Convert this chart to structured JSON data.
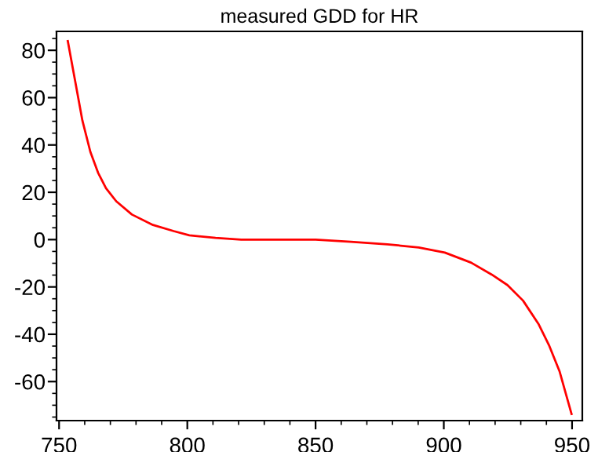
{
  "chart_data": {
    "type": "line",
    "title": "measured GDD for HR",
    "x": [
      753.4,
      756.1,
      759.1,
      762.2,
      765.2,
      768.3,
      772.3,
      778.4,
      786.6,
      794.7,
      800.8,
      811,
      821,
      850,
      863.8,
      878,
      890.2,
      900.4,
      910.6,
      918.7,
      924.8,
      930.9,
      937,
      941,
      945.1,
      949.8
    ],
    "series": [
      {
        "color": "#ff0000",
        "values": [
          83.9,
          68,
          50.3,
          37.1,
          28.3,
          21.7,
          16.2,
          10.6,
          6.2,
          3.6,
          1.8,
          0.7,
          0,
          0,
          -0.9,
          -2,
          -3.3,
          -5.5,
          -9.7,
          -14.8,
          -19.2,
          -25.8,
          -35.8,
          -44.6,
          -55.6,
          -73.7
        ]
      }
    ],
    "xlim": [
      749,
      954
    ],
    "ylim": [
      -76.5,
      88
    ],
    "xticks": [
      750,
      {
        "value": 760,
        "label": null
      },
      {
        "value": 770,
        "label": null
      },
      {
        "value": 780,
        "label": null
      },
      {
        "value": 790,
        "label": null
      },
      800,
      {
        "value": 810,
        "label": null
      },
      {
        "value": 820,
        "label": null
      },
      {
        "value": 830,
        "label": null
      },
      {
        "value": 840,
        "label": null
      },
      850,
      {
        "value": 860,
        "label": null
      },
      {
        "value": 870,
        "label": null
      },
      {
        "value": 880,
        "label": null
      },
      {
        "value": 890,
        "label": null
      },
      900,
      {
        "value": 910,
        "label": null
      },
      {
        "value": 920,
        "label": null
      },
      {
        "value": 930,
        "label": null
      },
      {
        "value": 940,
        "label": null
      },
      950
    ],
    "yticks": [
      {
        "value": -75,
        "label": null
      },
      {
        "value": -70,
        "label": null
      },
      {
        "value": -65,
        "label": null
      },
      -60,
      {
        "value": -55,
        "label": null
      },
      {
        "value": -50,
        "label": null
      },
      {
        "value": -45,
        "label": null
      },
      -40,
      {
        "value": -35,
        "label": null
      },
      {
        "value": -30,
        "label": null
      },
      {
        "value": -25,
        "label": null
      },
      -20,
      {
        "value": -15,
        "label": null
      },
      {
        "value": -10,
        "label": null
      },
      {
        "value": -5,
        "label": null
      },
      0,
      {
        "value": 5,
        "label": null
      },
      {
        "value": 10,
        "label": null
      },
      {
        "value": 15,
        "label": null
      },
      20,
      {
        "value": 25,
        "label": null
      },
      {
        "value": 30,
        "label": null
      },
      {
        "value": 35,
        "label": null
      },
      40,
      {
        "value": 45,
        "label": null
      },
      {
        "value": 50,
        "label": null
      },
      {
        "value": 55,
        "label": null
      },
      60,
      {
        "value": 65,
        "label": null
      },
      {
        "value": 70,
        "label": null
      },
      {
        "value": 75,
        "label": null
      },
      80,
      {
        "value": 85,
        "label": null
      }
    ],
    "grid": false,
    "legend": false,
    "marker": "none",
    "line_style": "solid"
  }
}
